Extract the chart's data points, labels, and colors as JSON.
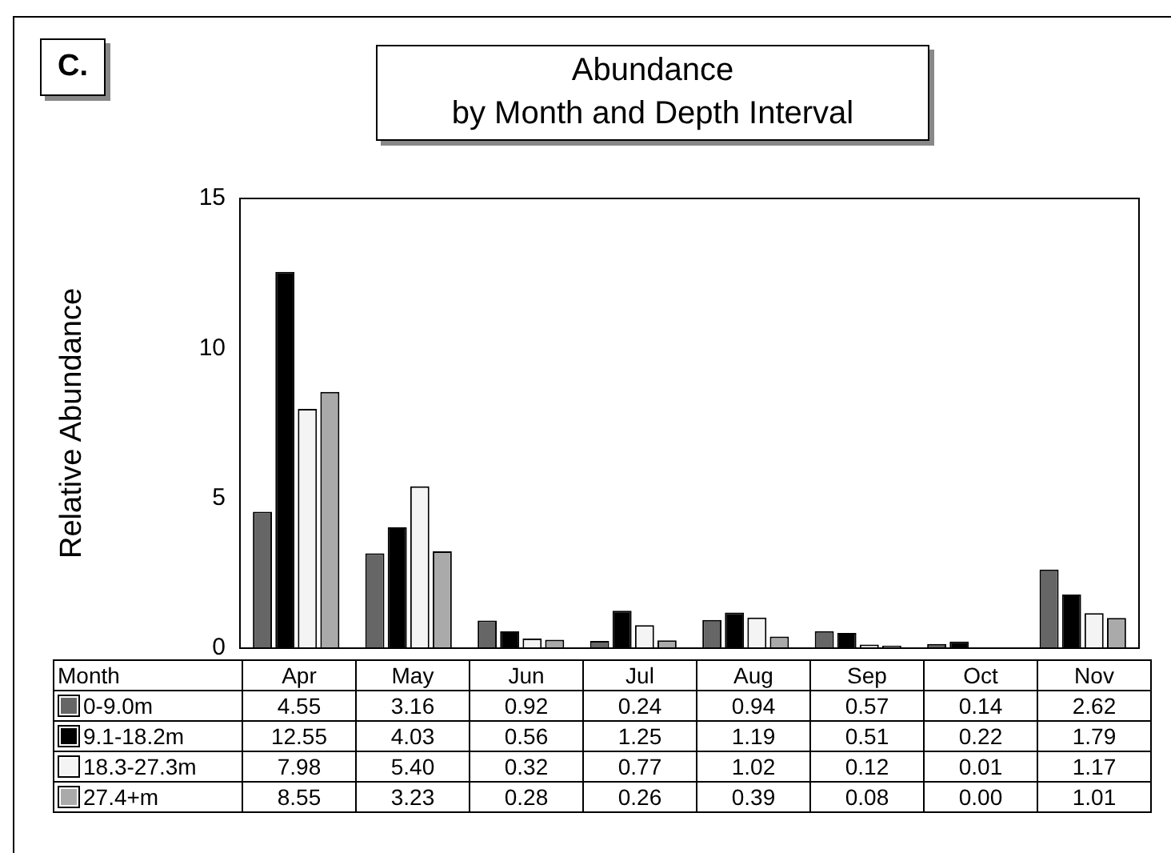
{
  "chart_data": {
    "type": "bar",
    "title": "Abundance\nby Month and Depth Interval",
    "annotations": [
      "C."
    ],
    "xlabel": "Month",
    "ylabel": "Relative Abundance",
    "categories": [
      "Apr",
      "May",
      "Jun",
      "Jul",
      "Aug",
      "Sep",
      "Oct",
      "Nov"
    ],
    "series": [
      {
        "name": "0-9.0m",
        "color": "#666666",
        "values": [
          4.55,
          3.16,
          0.92,
          0.24,
          0.94,
          0.57,
          0.14,
          2.62
        ],
        "value_labels": [
          "4.55",
          "3.16",
          "0.92",
          "0.24",
          "0.94",
          "0.57",
          "0.14",
          "2.62"
        ]
      },
      {
        "name": "9.1-18.2m",
        "color": "#000000",
        "values": [
          12.55,
          4.03,
          0.56,
          1.25,
          1.19,
          0.51,
          0.22,
          1.79
        ],
        "value_labels": [
          "12.55",
          "4.03",
          "0.56",
          "1.25",
          "1.19",
          "0.51",
          "0.22",
          "1.79"
        ]
      },
      {
        "name": "18.3-27.3m",
        "color": "#f4f4f4",
        "values": [
          7.98,
          5.4,
          0.32,
          0.77,
          1.02,
          0.12,
          0.01,
          1.17
        ],
        "value_labels": [
          "7.98",
          "5.40",
          "0.32",
          "0.77",
          "1.02",
          "0.12",
          "0.01",
          "1.17"
        ]
      },
      {
        "name": "27.4+m",
        "color": "#aaaaaa",
        "values": [
          8.55,
          3.23,
          0.28,
          0.26,
          0.39,
          0.08,
          0.0,
          1.01
        ],
        "value_labels": [
          "8.55",
          "3.23",
          "0.28",
          "0.26",
          "0.39",
          "0.08",
          "0.00",
          "1.01"
        ]
      }
    ],
    "ylim": [
      0,
      15
    ],
    "yticks": [
      0,
      5,
      10,
      15
    ],
    "grid": false,
    "legend": "bottom"
  }
}
